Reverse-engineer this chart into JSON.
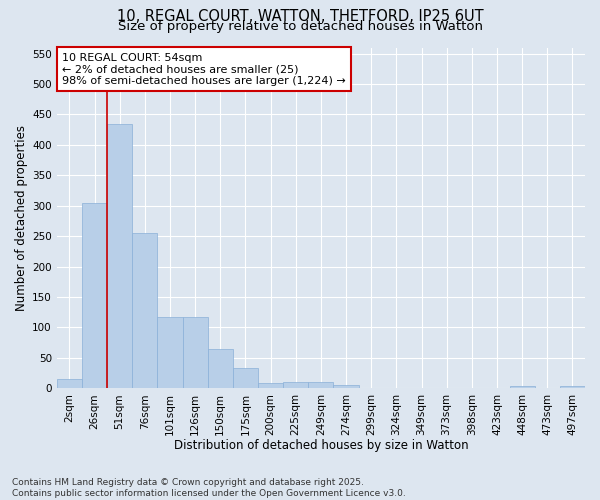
{
  "title_line1": "10, REGAL COURT, WATTON, THETFORD, IP25 6UT",
  "title_line2": "Size of property relative to detached houses in Watton",
  "xlabel": "Distribution of detached houses by size in Watton",
  "ylabel": "Number of detached properties",
  "categories": [
    "2sqm",
    "26sqm",
    "51sqm",
    "76sqm",
    "101sqm",
    "126sqm",
    "150sqm",
    "175sqm",
    "200sqm",
    "225sqm",
    "249sqm",
    "274sqm",
    "299sqm",
    "324sqm",
    "349sqm",
    "373sqm",
    "398sqm",
    "423sqm",
    "448sqm",
    "473sqm",
    "497sqm"
  ],
  "values": [
    15,
    305,
    435,
    255,
    118,
    118,
    65,
    33,
    8,
    10,
    10,
    5,
    1,
    1,
    1,
    0,
    0,
    0,
    4,
    0,
    4
  ],
  "bar_color": "#b8cfe8",
  "bar_edge_color": "#8ab0d8",
  "property_line_x": 1.5,
  "annotation_text": "10 REGAL COURT: 54sqm\n← 2% of detached houses are smaller (25)\n98% of semi-detached houses are larger (1,224) →",
  "annotation_box_color": "#ffffff",
  "annotation_box_edge": "#cc0000",
  "vline_color": "#cc0000",
  "background_color": "#dde6f0",
  "grid_color": "#ffffff",
  "ylim": [
    0,
    560
  ],
  "yticks": [
    0,
    50,
    100,
    150,
    200,
    250,
    300,
    350,
    400,
    450,
    500,
    550
  ],
  "footer_line1": "Contains HM Land Registry data © Crown copyright and database right 2025.",
  "footer_line2": "Contains public sector information licensed under the Open Government Licence v3.0.",
  "title_fontsize": 10.5,
  "subtitle_fontsize": 9.5,
  "axis_label_fontsize": 8.5,
  "tick_fontsize": 7.5,
  "annotation_fontsize": 8,
  "footer_fontsize": 6.5
}
